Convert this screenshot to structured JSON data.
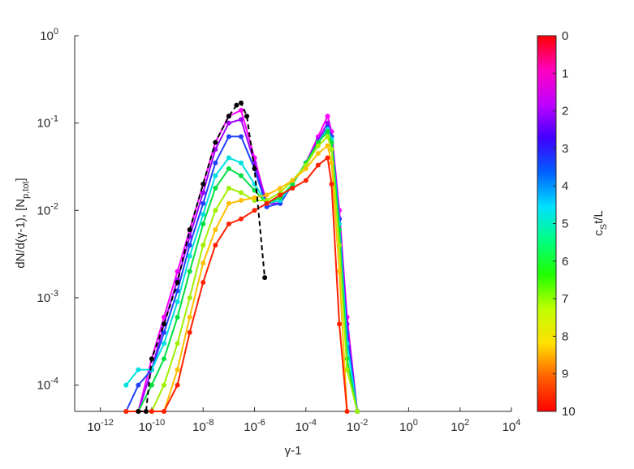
{
  "chart_data": {
    "type": "line",
    "xlabel": "γ-1",
    "ylabel": {
      "text": "dN/d(γ-1), [N",
      "sub": "p,tot",
      "tail": "]"
    },
    "xscale": "log",
    "yscale": "log",
    "xlim": [
      1e-13,
      10000.0
    ],
    "ylim": [
      5e-05,
      1
    ],
    "xticks": [
      {
        "value": 1e-12,
        "label": "10",
        "exp": "-12"
      },
      {
        "value": 1e-10,
        "label": "10",
        "exp": "-10"
      },
      {
        "value": 1e-08,
        "label": "10",
        "exp": "-8"
      },
      {
        "value": 1e-06,
        "label": "10",
        "exp": "-6"
      },
      {
        "value": 0.0001,
        "label": "10",
        "exp": "-4"
      },
      {
        "value": 0.01,
        "label": "10",
        "exp": "-2"
      },
      {
        "value": 1,
        "label": "10",
        "exp": "0"
      },
      {
        "value": 100,
        "label": "10",
        "exp": "2"
      },
      {
        "value": 10000,
        "label": "10",
        "exp": "4"
      }
    ],
    "yticks": [
      {
        "value": 0.0001,
        "label": "10",
        "exp": "-4"
      },
      {
        "value": 0.001,
        "label": "10",
        "exp": "-3"
      },
      {
        "value": 0.01,
        "label": "10",
        "exp": "-2"
      },
      {
        "value": 0.1,
        "label": "10",
        "exp": "-1"
      },
      {
        "value": 1,
        "label": "10",
        "exp": "0"
      }
    ],
    "x": [
      1e-11,
      3e-11,
      1e-10,
      3e-10,
      1e-09,
      3e-09,
      1e-08,
      3e-08,
      1e-07,
      3e-07,
      1e-06,
      3e-06,
      1e-05,
      3e-05,
      0.0001,
      0.0003,
      0.0007,
      0.001,
      0.002,
      0.004,
      0.01
    ],
    "series": [
      {
        "color": "#ff00ff",
        "values": [
          5e-05,
          5e-05,
          0.0002,
          0.0006,
          0.002,
          0.006,
          0.02,
          0.06,
          0.12,
          0.14,
          0.04,
          0.012,
          0.012,
          0.02,
          0.035,
          0.07,
          0.12,
          0.08,
          0.01,
          0.0006,
          5e-05
        ]
      },
      {
        "color": "#a000ff",
        "values": [
          5e-05,
          5e-05,
          0.00015,
          0.0005,
          0.0016,
          0.005,
          0.016,
          0.05,
          0.1,
          0.11,
          0.035,
          0.012,
          0.012,
          0.02,
          0.035,
          0.065,
          0.1,
          0.07,
          0.008,
          0.0005,
          5e-05
        ]
      },
      {
        "color": "#2040ff",
        "values": [
          5e-05,
          0.0001,
          0.00015,
          0.0004,
          0.0012,
          0.004,
          0.012,
          0.035,
          0.07,
          0.07,
          0.03,
          0.011,
          0.012,
          0.02,
          0.035,
          0.06,
          0.09,
          0.07,
          0.008,
          0.0004,
          5e-05
        ]
      },
      {
        "color": "#00e0e0",
        "values": [
          0.0001,
          0.00015,
          0.00015,
          0.0003,
          0.0009,
          0.003,
          0.009,
          0.025,
          0.04,
          0.035,
          0.02,
          0.012,
          0.013,
          0.02,
          0.035,
          0.06,
          0.085,
          0.065,
          0.007,
          0.0003,
          5e-05
        ]
      },
      {
        "color": "#00e040",
        "values": [
          5e-05,
          5e-05,
          0.0001,
          0.0002,
          0.0006,
          0.002,
          0.007,
          0.018,
          0.03,
          0.025,
          0.017,
          0.012,
          0.014,
          0.02,
          0.035,
          0.06,
          0.08,
          0.06,
          0.006,
          0.0002,
          5e-05
        ]
      },
      {
        "color": "#a0f000",
        "values": [
          5e-05,
          5e-05,
          5e-05,
          0.0001,
          0.0003,
          0.001,
          0.004,
          0.01,
          0.018,
          0.016,
          0.013,
          0.013,
          0.016,
          0.022,
          0.033,
          0.055,
          0.07,
          0.05,
          0.004,
          0.00015,
          5e-05
        ]
      },
      {
        "color": "#ffc000",
        "values": [
          5e-05,
          5e-05,
          5e-05,
          5e-05,
          0.00015,
          0.0006,
          0.0025,
          0.006,
          0.012,
          0.013,
          0.014,
          0.015,
          0.018,
          0.022,
          0.03,
          0.045,
          0.055,
          0.035,
          0.002,
          5e-05,
          null
        ]
      },
      {
        "color": "#ff2000",
        "values": [
          5e-05,
          5e-05,
          5e-05,
          5e-05,
          0.0001,
          0.0004,
          0.0015,
          0.004,
          0.007,
          0.008,
          0.01,
          0.012,
          0.015,
          0.018,
          0.022,
          0.033,
          0.04,
          0.02,
          0.0005,
          5e-05,
          null
        ]
      },
      {
        "color": "#000000",
        "dashed": true,
        "x": [
          3e-11,
          6e-11,
          1e-10,
          3e-10,
          1e-09,
          3e-09,
          1e-08,
          3e-08,
          1e-07,
          2e-07,
          3e-07,
          5e-07,
          1e-06,
          2.5e-06
        ],
        "values": [
          5e-05,
          5e-05,
          0.0002,
          0.0005,
          0.0015,
          0.006,
          0.02,
          0.06,
          0.12,
          0.16,
          0.17,
          0.12,
          0.03,
          0.0017
        ]
      }
    ],
    "colorbar": {
      "label": {
        "text": "c",
        "sub": "S",
        "tail": "t/L"
      },
      "clim": [
        0,
        10
      ],
      "ticks": [
        0,
        1,
        2,
        3,
        4,
        5,
        6,
        7,
        8,
        9,
        10
      ],
      "colors": [
        "#ff0000",
        "#ff00c0",
        "#c000ff",
        "#4000ff",
        "#0060ff",
        "#00e0ff",
        "#00ff80",
        "#20ff00",
        "#c0ff00",
        "#ffe000",
        "#ff6000",
        "#ff0000"
      ]
    }
  }
}
